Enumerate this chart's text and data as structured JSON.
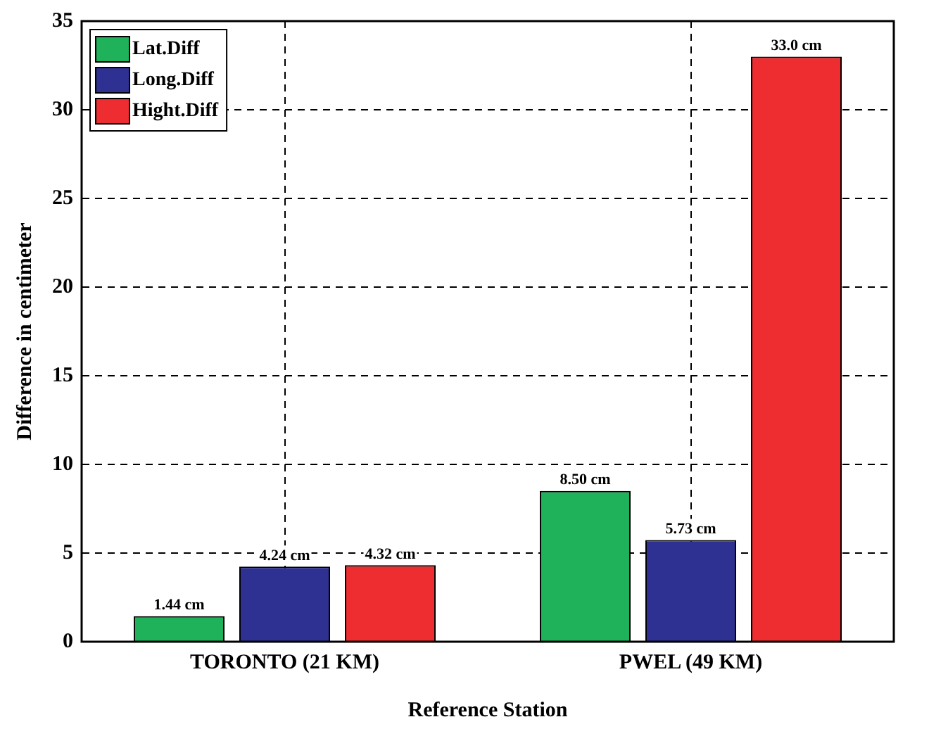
{
  "chart_data": {
    "type": "bar",
    "xlabel": "Reference Station",
    "ylabel": "Difference in centimeter",
    "categories": [
      "TORONTO (21 KM)",
      "PWEL (49 KM)"
    ],
    "series": [
      {
        "name": "Lat.Diff",
        "color": "#1fb25a",
        "values": [
          1.44,
          8.5
        ],
        "value_labels": [
          "1.44 cm",
          "8.50 cm"
        ]
      },
      {
        "name": "Long.Diff",
        "color": "#2e3192",
        "values": [
          4.24,
          5.73
        ],
        "value_labels": [
          "4.24 cm",
          "5.73 cm"
        ]
      },
      {
        "name": "Hight.Diff",
        "color": "#ed2d2f",
        "values": [
          4.32,
          33.0
        ],
        "value_labels": [
          "4.32 cm",
          "33.0 cm"
        ]
      }
    ],
    "ylim": [
      0,
      35
    ],
    "yticks": [
      0,
      5,
      10,
      15,
      20,
      25,
      30,
      35
    ],
    "grid": true,
    "legend": "top left"
  }
}
